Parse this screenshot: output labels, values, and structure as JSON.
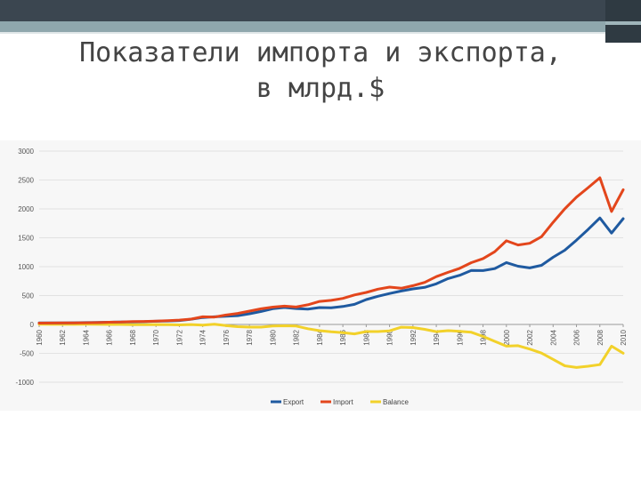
{
  "slide": {
    "title_line1": "Показатели импорта и экспорта,",
    "title_line2": "в млрд.$"
  },
  "colors": {
    "export": "#1f5aa0",
    "import": "#e3461c",
    "balance": "#f2d12a",
    "grid": "#e2e2e2"
  },
  "chart_data": {
    "type": "line",
    "title": "",
    "xlabel": "",
    "ylabel": "",
    "ylim": [
      -1000,
      3000
    ],
    "yticks": [
      -1000,
      -500,
      0,
      500,
      1000,
      1500,
      2000,
      2500,
      3000
    ],
    "x": [
      1960,
      1961,
      1962,
      1963,
      1964,
      1965,
      1966,
      1967,
      1968,
      1969,
      1970,
      1971,
      1972,
      1973,
      1974,
      1975,
      1976,
      1977,
      1978,
      1979,
      1980,
      1981,
      1982,
      1983,
      1984,
      1985,
      1986,
      1987,
      1988,
      1989,
      1990,
      1991,
      1992,
      1993,
      1994,
      1995,
      1996,
      1997,
      1998,
      1999,
      2000,
      2001,
      2002,
      2003,
      2004,
      2005,
      2006,
      2007,
      2008,
      2009,
      2010
    ],
    "xticks": [
      "1960",
      "1962",
      "1964",
      "1966",
      "1968",
      "1970",
      "1972",
      "1974",
      "1976",
      "1978",
      "1980",
      "1982",
      "1984",
      "1986",
      "1988",
      "1990",
      "1992",
      "1994",
      "1996",
      "1998",
      "2000",
      "2002",
      "2004",
      "2006",
      "2008",
      "2010"
    ],
    "legend_position": "bottom",
    "series": [
      {
        "name": "Export",
        "values": [
          26,
          27,
          28,
          30,
          33,
          35,
          38,
          41,
          45,
          47,
          56,
          60,
          67,
          91,
          120,
          132,
          143,
          152,
          185,
          225,
          272,
          294,
          275,
          266,
          292,
          289,
          310,
          348,
          431,
          487,
          535,
          578,
          616,
          642,
          703,
          794,
          851,
          934,
          933,
          966,
          1071,
          1007,
          979,
          1023,
          1163,
          1285,
          1458,
          1645,
          1843,
          1581,
          1831
        ]
      },
      {
        "name": "Import",
        "values": [
          23,
          25,
          27,
          28,
          30,
          33,
          38,
          41,
          49,
          52,
          57,
          64,
          75,
          93,
          133,
          128,
          163,
          191,
          231,
          271,
          300,
          317,
          302,
          340,
          399,
          417,
          451,
          511,
          554,
          610,
          646,
          626,
          670,
          727,
          827,
          902,
          970,
          1070,
          1140,
          1258,
          1447,
          1375,
          1405,
          1519,
          1768,
          2001,
          2203,
          2368,
          2538,
          1956,
          2330
        ]
      },
      {
        "name": "Balance",
        "values": [
          3,
          2,
          1,
          2,
          3,
          2,
          0,
          0,
          -4,
          -5,
          -1,
          -4,
          -8,
          -2,
          -13,
          4,
          -20,
          -39,
          -46,
          -46,
          -28,
          -23,
          -27,
          -74,
          -107,
          -128,
          -141,
          -163,
          -123,
          -123,
          -111,
          -48,
          -54,
          -85,
          -124,
          -108,
          -119,
          -136,
          -207,
          -292,
          -376,
          -368,
          -426,
          -496,
          -605,
          -716,
          -745,
          -723,
          -695,
          -375,
          -499
        ]
      }
    ]
  }
}
